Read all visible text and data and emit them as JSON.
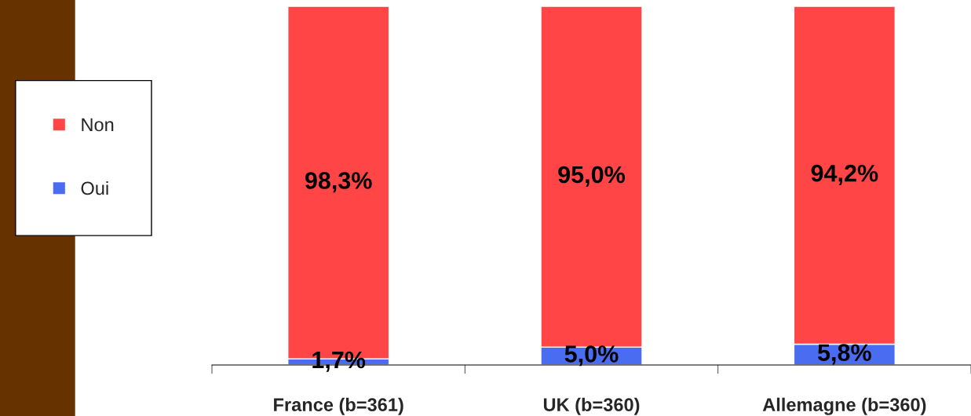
{
  "chart_data": {
    "type": "bar",
    "stacked": true,
    "categories": [
      "France (b=361)",
      "UK (b=360)",
      "Allemagne (b=360)"
    ],
    "series": [
      {
        "name": "Oui",
        "color": "#4a6cf0",
        "values": [
          1.7,
          5.0,
          5.8
        ],
        "value_labels": [
          "1,7%",
          "5,0%",
          "5,8%"
        ]
      },
      {
        "name": "Non",
        "color": "#ff4545",
        "values": [
          98.3,
          95.0,
          94.2
        ],
        "value_labels": [
          "98,3%",
          "95,0%",
          "94,2%"
        ]
      }
    ],
    "legend": "left",
    "tick_labels": "x"
  }
}
